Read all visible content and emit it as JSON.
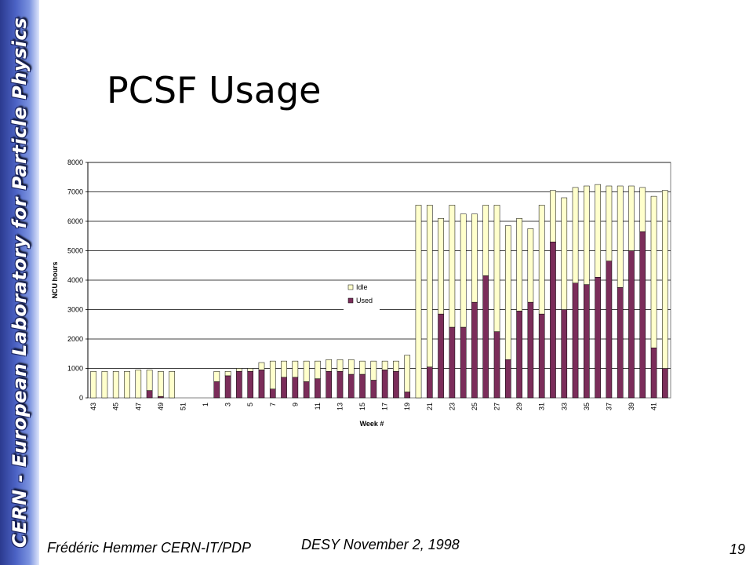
{
  "sidebar": {
    "text": "CERN - European Laboratory for Particle Physics"
  },
  "slide": {
    "title": "PCSF Usage"
  },
  "footer": {
    "author": "Frédéric Hemmer CERN-IT/PDP",
    "event": "DESY November 2, 1998",
    "page": "19"
  },
  "colors": {
    "used": "#7b2d5a",
    "idle": "#ffffcc"
  },
  "chart_data": {
    "type": "bar",
    "stacked": true,
    "xlabel": "Week #",
    "ylabel": "NCU hours",
    "ylim": [
      0,
      8000
    ],
    "yticks": [
      "0",
      "1000",
      "2000",
      "3000",
      "4000",
      "5000",
      "6000",
      "7000",
      "8000"
    ],
    "legend": [
      "Idle",
      "Used"
    ],
    "legend_position": "center",
    "grid": true,
    "categories": [
      "43",
      "44",
      "45",
      "46",
      "47",
      "48",
      "49",
      "50",
      "51",
      "52",
      "1",
      "2",
      "3",
      "4",
      "5",
      "6",
      "7",
      "8",
      "9",
      "10",
      "11",
      "12",
      "13",
      "14",
      "15",
      "16",
      "17",
      "18",
      "19",
      "20",
      "21",
      "22",
      "23",
      "24",
      "25",
      "26",
      "27",
      "28",
      "29",
      "30",
      "31",
      "32",
      "33",
      "34",
      "35",
      "36",
      "37",
      "38",
      "39",
      "40",
      "41",
      "42"
    ],
    "x_tick_labels": [
      "43",
      "45",
      "47",
      "49",
      "51",
      "1",
      "3",
      "5",
      "7",
      "9",
      "11",
      "13",
      "15",
      "17",
      "19",
      "21",
      "23",
      "25",
      "27",
      "29",
      "31",
      "33",
      "35",
      "37",
      "39",
      "41"
    ],
    "series": [
      {
        "name": "Used",
        "values": [
          0,
          0,
          0,
          0,
          0,
          250,
          50,
          0,
          0,
          0,
          0,
          550,
          750,
          900,
          900,
          950,
          300,
          700,
          700,
          550,
          650,
          900,
          900,
          800,
          800,
          600,
          950,
          900,
          200,
          0,
          1050,
          2850,
          2400,
          2400,
          3250,
          4150,
          2250,
          1300,
          2950,
          3250,
          2850,
          5300,
          3000,
          3900,
          3850,
          4100,
          4650,
          3750,
          5000,
          5650,
          1700,
          1000
        ]
      },
      {
        "name": "Idle",
        "values": [
          900,
          900,
          900,
          900,
          950,
          700,
          850,
          900,
          0,
          0,
          0,
          350,
          150,
          100,
          100,
          250,
          950,
          550,
          550,
          700,
          600,
          400,
          400,
          500,
          450,
          650,
          300,
          350,
          1250,
          6550,
          5500,
          3250,
          4150,
          3850,
          3000,
          2400,
          4300,
          4550,
          3150,
          2500,
          3700,
          1750,
          3800,
          3250,
          3350,
          3150,
          2550,
          3450,
          2200,
          1500,
          5150,
          6050
        ]
      }
    ]
  }
}
